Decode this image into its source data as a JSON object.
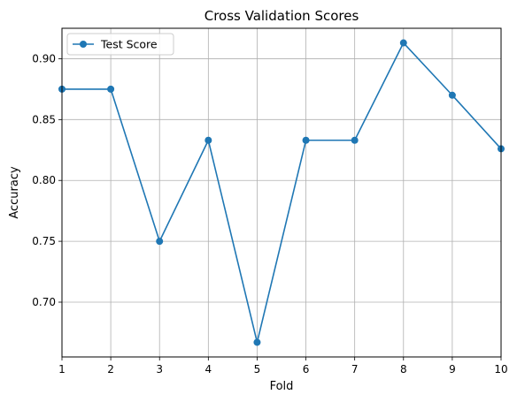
{
  "chart_data": {
    "type": "line",
    "title": "Cross Validation Scores",
    "xlabel": "Fold",
    "ylabel": "Accuracy",
    "xlim": [
      1,
      10
    ],
    "ylim": [
      0.655,
      0.925
    ],
    "x_ticks": [
      1,
      2,
      3,
      4,
      5,
      6,
      7,
      8,
      9,
      10
    ],
    "y_ticks": [
      0.7,
      0.75,
      0.8,
      0.85,
      0.9
    ],
    "y_tick_labels": [
      "0.70",
      "0.75",
      "0.80",
      "0.85",
      "0.90"
    ],
    "grid": true,
    "legend_position": "top-left",
    "series": [
      {
        "name": "Test Score",
        "color": "#1f77b4",
        "marker": "circle",
        "x": [
          1,
          2,
          3,
          4,
          5,
          6,
          7,
          8,
          9,
          10
        ],
        "values": [
          0.875,
          0.875,
          0.75,
          0.833,
          0.667,
          0.833,
          0.833,
          0.913,
          0.87,
          0.826
        ]
      }
    ]
  }
}
